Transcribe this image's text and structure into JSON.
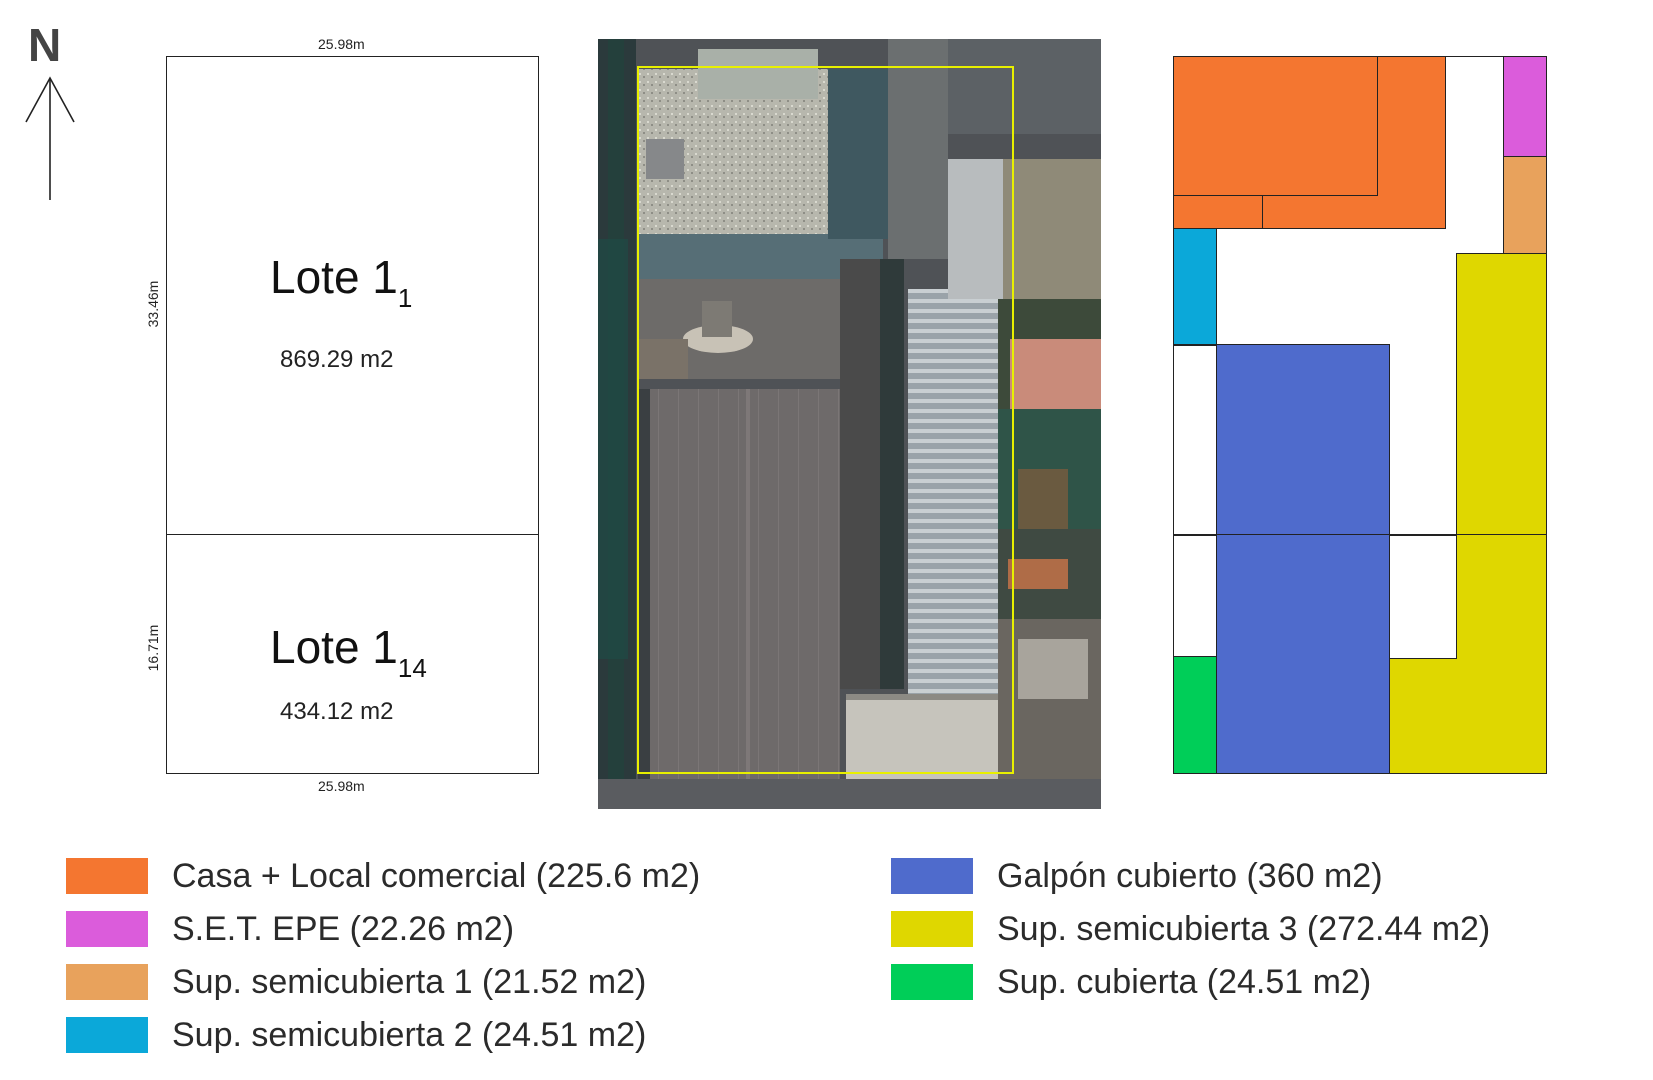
{
  "north": {
    "label": "N"
  },
  "lot_plan": {
    "top_width": "25.98m",
    "bottom_width": "25.98m",
    "lot_a": {
      "title": "Lote 1",
      "subscript": "1",
      "area": "869.29 m2",
      "side_depth": "33.46m"
    },
    "lot_b": {
      "title": "Lote 1",
      "subscript": "14",
      "area": "434.12 m2",
      "side_depth": "16.71m"
    }
  },
  "colors": {
    "casa_local": "#F47630",
    "set_epe": "#DB5CDB",
    "semicubierta_1": "#E8A25C",
    "semicubierta_2": "#0BA8D9",
    "galpon": "#4F6BCC",
    "semicubierta_3": "#DFD700",
    "cubierta": "#00CE58"
  },
  "legend": {
    "left": [
      {
        "label": "Casa + Local comercial (225.6 m2)",
        "color": "#F47630"
      },
      {
        "label": "S.E.T. EPE (22.26 m2)",
        "color": "#DB5CDB"
      },
      {
        "label": "Sup. semicubierta 1 (21.52 m2)",
        "color": "#E8A25C"
      },
      {
        "label": "Sup. semicubierta 2 (24.51 m2)",
        "color": "#0BA8D9"
      }
    ],
    "right": [
      {
        "label": "Galpón cubierto (360 m2)",
        "color": "#4F6BCC"
      },
      {
        "label": "Sup. semicubierta 3 (272.44 m2)",
        "color": "#DFD700"
      },
      {
        "label": "Sup. cubierta (24.51 m2)",
        "color": "#00CE58"
      }
    ]
  }
}
